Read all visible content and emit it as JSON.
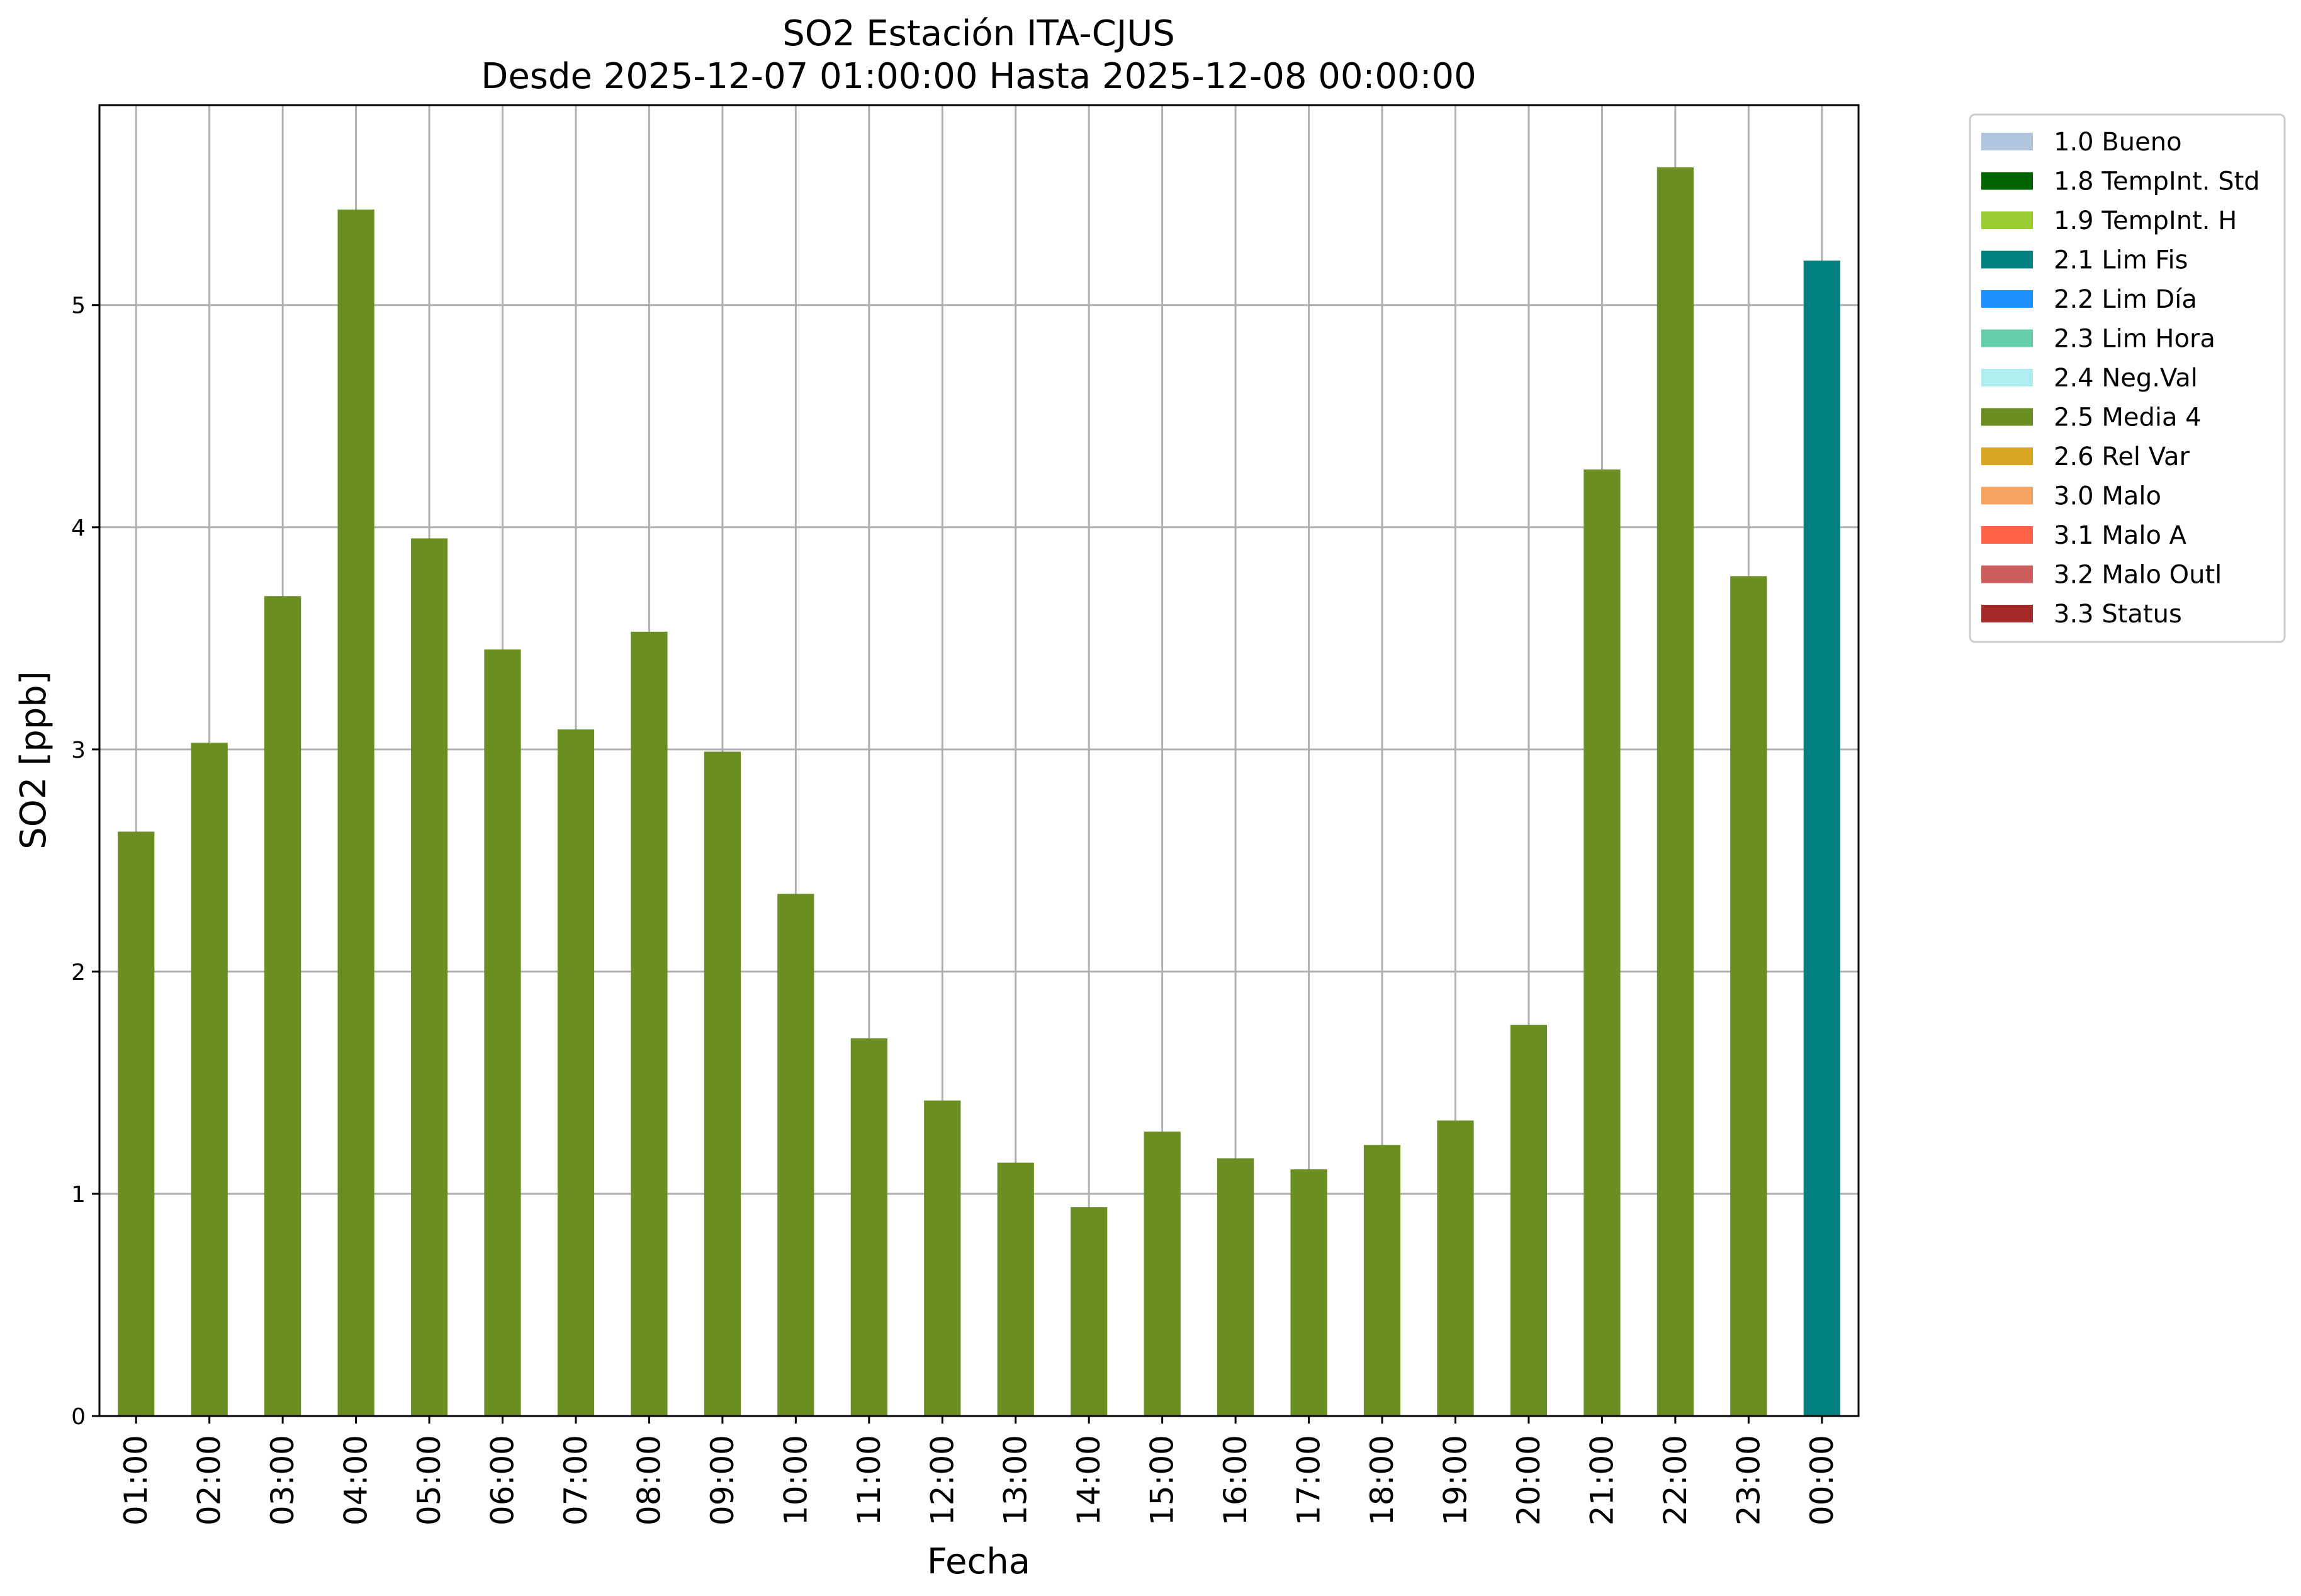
{
  "chart_data": {
    "type": "bar",
    "title": "SO2 Estación ITA-CJUS",
    "subtitle": "Desde 2025-12-07 01:00:00 Hasta 2025-12-08 00:00:00",
    "xlabel": "Fecha",
    "ylabel": "SO2 [ppb]",
    "ylim": [
      0,
      5.9
    ],
    "yticks": [
      "0",
      "1",
      "2",
      "3",
      "4",
      "5"
    ],
    "grid": true,
    "legend_position": "outside right, top",
    "categories": [
      "01:00",
      "02:00",
      "03:00",
      "04:00",
      "05:00",
      "06:00",
      "07:00",
      "08:00",
      "09:00",
      "10:00",
      "11:00",
      "12:00",
      "13:00",
      "14:00",
      "15:00",
      "16:00",
      "17:00",
      "18:00",
      "19:00",
      "20:00",
      "21:00",
      "22:00",
      "23:00",
      "00:00"
    ],
    "values": [
      2.63,
      3.03,
      3.69,
      5.43,
      3.95,
      3.45,
      3.09,
      3.53,
      2.99,
      2.35,
      1.7,
      1.42,
      1.14,
      0.94,
      1.28,
      1.16,
      1.11,
      1.22,
      1.33,
      1.76,
      4.26,
      5.62,
      3.78,
      5.2
    ],
    "flags": [
      "2.5 Media 4",
      "2.5 Media 4",
      "2.5 Media 4",
      "2.5 Media 4",
      "2.5 Media 4",
      "2.5 Media 4",
      "2.5 Media 4",
      "2.5 Media 4",
      "2.5 Media 4",
      "2.5 Media 4",
      "2.5 Media 4",
      "2.5 Media 4",
      "2.5 Media 4",
      "2.5 Media 4",
      "2.5 Media 4",
      "2.5 Media 4",
      "2.5 Media 4",
      "2.5 Media 4",
      "2.5 Media 4",
      "2.5 Media 4",
      "2.5 Media 4",
      "2.5 Media 4",
      "2.5 Media 4",
      "2.1 Lim Fis"
    ],
    "legend": [
      {
        "label": "1.0 Bueno",
        "color": "#b0c4de"
      },
      {
        "label": "1.8 TempInt. Std",
        "color": "#006400"
      },
      {
        "label": "1.9 TempInt. H",
        "color": "#9acd32"
      },
      {
        "label": "2.1 Lim Fis",
        "color": "#008080"
      },
      {
        "label": "2.2 Lim Día",
        "color": "#1e90ff"
      },
      {
        "label": "2.3 Lim Hora",
        "color": "#66cdaa"
      },
      {
        "label": "2.4 Neg.Val",
        "color": "#afeeee"
      },
      {
        "label": "2.5 Media 4",
        "color": "#6b8e23"
      },
      {
        "label": "2.6 Rel Var",
        "color": "#daa520"
      },
      {
        "label": "3.0 Malo",
        "color": "#f4a460"
      },
      {
        "label": "3.1 Malo A",
        "color": "#ff6347"
      },
      {
        "label": "3.2 Malo Outl",
        "color": "#cd5c5c"
      },
      {
        "label": "3.3 Status",
        "color": "#a52a2a"
      }
    ]
  }
}
